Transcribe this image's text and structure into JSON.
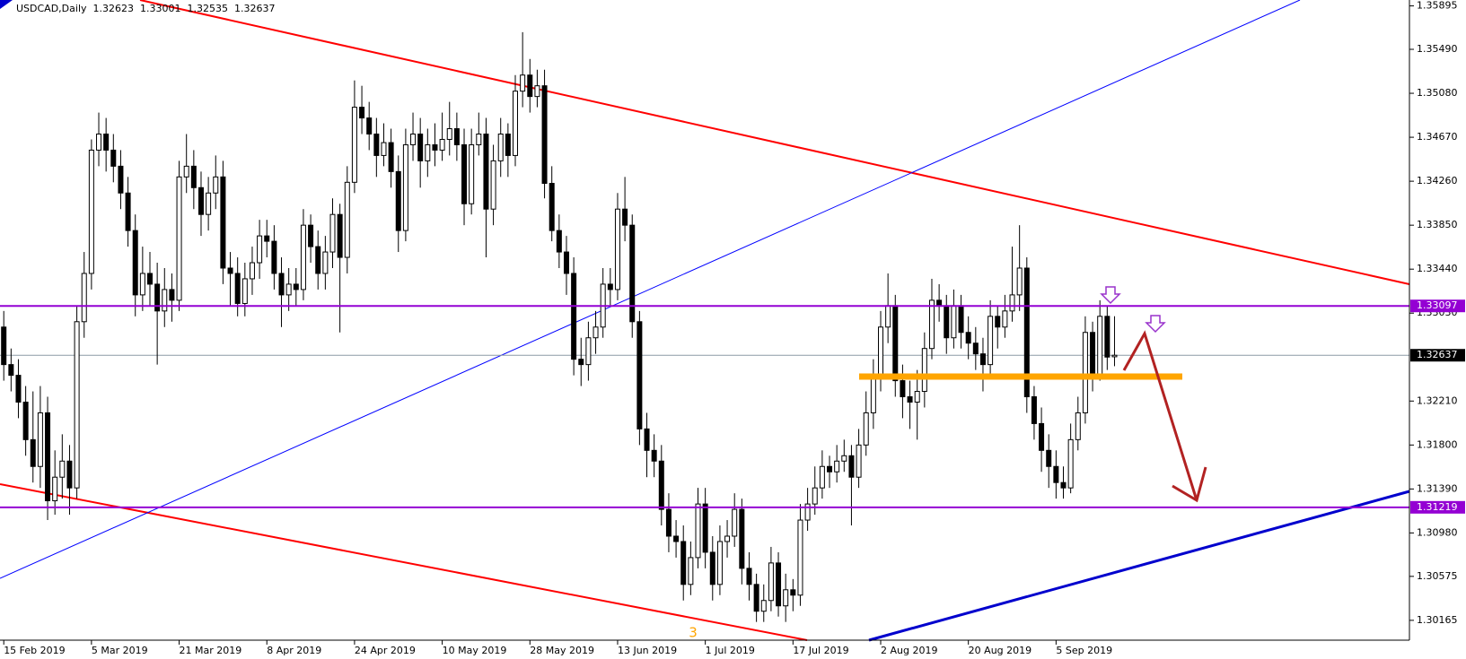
{
  "chart_data": {
    "type": "candlestick",
    "title": "USDCAD,Daily",
    "categories": [
      "15 Feb 2019",
      null,
      null,
      null,
      null,
      null,
      null,
      null,
      null,
      null,
      null,
      null,
      "5 Mar 2019",
      null,
      null,
      null,
      null,
      null,
      null,
      null,
      null,
      null,
      null,
      null,
      "21 Mar 2019",
      null,
      null,
      null,
      null,
      null,
      null,
      null,
      null,
      null,
      null,
      null,
      "8 Apr 2019",
      null,
      null,
      null,
      null,
      null,
      null,
      null,
      null,
      null,
      null,
      null,
      "24 Apr 2019",
      null,
      null,
      null,
      null,
      null,
      null,
      null,
      null,
      null,
      null,
      null,
      "10 May 2019",
      null,
      null,
      null,
      null,
      null,
      null,
      null,
      null,
      null,
      null,
      null,
      "28 May 2019",
      null,
      null,
      null,
      null,
      null,
      null,
      null,
      null,
      null,
      null,
      null,
      "13 Jun 2019",
      null,
      null,
      null,
      null,
      null,
      null,
      null,
      null,
      null,
      null,
      null,
      "1 Jul 2019",
      null,
      null,
      null,
      null,
      null,
      null,
      null,
      null,
      null,
      null,
      null,
      "17 Jul 2019",
      null,
      null,
      null,
      null,
      null,
      null,
      null,
      null,
      null,
      null,
      null,
      "2 Aug 2019",
      null,
      null,
      null,
      null,
      null,
      null,
      null,
      null,
      null,
      null,
      null,
      "20 Aug 2019",
      null,
      null,
      null,
      null,
      null,
      null,
      null,
      null,
      null,
      null,
      null,
      "5 Sep 2019",
      null,
      null,
      null,
      null,
      null,
      null,
      null,
      null
    ],
    "values": [
      [
        1.329,
        1.3305,
        1.324,
        1.3255
      ],
      [
        1.3255,
        1.327,
        1.323,
        1.3245
      ],
      [
        1.3245,
        1.326,
        1.3205,
        1.322
      ],
      [
        1.322,
        1.3235,
        1.317,
        1.3185
      ],
      [
        1.3185,
        1.323,
        1.3145,
        1.316
      ],
      [
        1.316,
        1.3235,
        1.314,
        1.321
      ],
      [
        1.321,
        1.3225,
        1.311,
        1.3128
      ],
      [
        1.3128,
        1.3175,
        1.3115,
        1.315
      ],
      [
        1.315,
        1.319,
        1.313,
        1.3165
      ],
      [
        1.3165,
        1.318,
        1.3115,
        1.314
      ],
      [
        1.314,
        1.331,
        1.313,
        1.3295
      ],
      [
        1.3295,
        1.336,
        1.328,
        1.334
      ],
      [
        1.334,
        1.3465,
        1.3325,
        1.3455
      ],
      [
        1.3455,
        1.349,
        1.344,
        1.347
      ],
      [
        1.347,
        1.3485,
        1.3435,
        1.3455
      ],
      [
        1.3455,
        1.347,
        1.3425,
        1.344
      ],
      [
        1.344,
        1.3455,
        1.34,
        1.3415
      ],
      [
        1.3415,
        1.343,
        1.3365,
        1.338
      ],
      [
        1.338,
        1.3395,
        1.33,
        1.332
      ],
      [
        1.332,
        1.3365,
        1.3305,
        1.334
      ],
      [
        1.334,
        1.336,
        1.331,
        1.333
      ],
      [
        1.333,
        1.335,
        1.3255,
        1.3305
      ],
      [
        1.3305,
        1.3345,
        1.329,
        1.3325
      ],
      [
        1.3325,
        1.334,
        1.3295,
        1.3315
      ],
      [
        1.3315,
        1.3445,
        1.3305,
        1.343
      ],
      [
        1.343,
        1.347,
        1.3415,
        1.344
      ],
      [
        1.344,
        1.3455,
        1.34,
        1.342
      ],
      [
        1.342,
        1.3435,
        1.3375,
        1.3395
      ],
      [
        1.3395,
        1.343,
        1.338,
        1.3415
      ],
      [
        1.3415,
        1.345,
        1.34,
        1.343
      ],
      [
        1.343,
        1.3445,
        1.333,
        1.3345
      ],
      [
        1.3345,
        1.336,
        1.331,
        1.334
      ],
      [
        1.334,
        1.3355,
        1.33,
        1.3312
      ],
      [
        1.3312,
        1.335,
        1.33,
        1.3335
      ],
      [
        1.3335,
        1.3365,
        1.332,
        1.335
      ],
      [
        1.335,
        1.339,
        1.3335,
        1.3375
      ],
      [
        1.3375,
        1.339,
        1.3355,
        1.337
      ],
      [
        1.337,
        1.3385,
        1.3325,
        1.334
      ],
      [
        1.334,
        1.3355,
        1.329,
        1.332
      ],
      [
        1.332,
        1.3345,
        1.3305,
        1.333
      ],
      [
        1.333,
        1.3345,
        1.331,
        1.3325
      ],
      [
        1.3325,
        1.34,
        1.3315,
        1.3385
      ],
      [
        1.3385,
        1.3395,
        1.335,
        1.3365
      ],
      [
        1.3365,
        1.338,
        1.3325,
        1.334
      ],
      [
        1.334,
        1.3375,
        1.3325,
        1.336
      ],
      [
        1.336,
        1.341,
        1.3345,
        1.3395
      ],
      [
        1.3395,
        1.3405,
        1.3285,
        1.3355
      ],
      [
        1.3355,
        1.344,
        1.334,
        1.3425
      ],
      [
        1.3425,
        1.352,
        1.3415,
        1.3495
      ],
      [
        1.3495,
        1.3515,
        1.347,
        1.3485
      ],
      [
        1.3485,
        1.35,
        1.3455,
        1.347
      ],
      [
        1.347,
        1.3485,
        1.343,
        1.345
      ],
      [
        1.345,
        1.348,
        1.344,
        1.3462
      ],
      [
        1.3462,
        1.3475,
        1.342,
        1.3435
      ],
      [
        1.3435,
        1.345,
        1.336,
        1.338
      ],
      [
        1.338,
        1.3475,
        1.337,
        1.346
      ],
      [
        1.346,
        1.349,
        1.3445,
        1.347
      ],
      [
        1.347,
        1.3485,
        1.342,
        1.3445
      ],
      [
        1.3445,
        1.3475,
        1.343,
        1.346
      ],
      [
        1.346,
        1.348,
        1.344,
        1.3455
      ],
      [
        1.3455,
        1.349,
        1.3445,
        1.3465
      ],
      [
        1.3465,
        1.35,
        1.345,
        1.3475
      ],
      [
        1.3475,
        1.349,
        1.3445,
        1.346
      ],
      [
        1.346,
        1.3475,
        1.3385,
        1.3405
      ],
      [
        1.3405,
        1.3475,
        1.3395,
        1.346
      ],
      [
        1.346,
        1.349,
        1.345,
        1.347
      ],
      [
        1.347,
        1.3485,
        1.3355,
        1.34
      ],
      [
        1.34,
        1.346,
        1.3385,
        1.3445
      ],
      [
        1.3445,
        1.3485,
        1.343,
        1.347
      ],
      [
        1.347,
        1.348,
        1.343,
        1.345
      ],
      [
        1.345,
        1.3525,
        1.344,
        1.351
      ],
      [
        1.351,
        1.3565,
        1.3495,
        1.3525
      ],
      [
        1.3525,
        1.354,
        1.349,
        1.3505
      ],
      [
        1.3505,
        1.353,
        1.3495,
        1.3515
      ],
      [
        1.3515,
        1.353,
        1.341,
        1.3424
      ],
      [
        1.3424,
        1.344,
        1.337,
        1.338
      ],
      [
        1.338,
        1.3395,
        1.3345,
        1.336
      ],
      [
        1.336,
        1.3375,
        1.332,
        1.334
      ],
      [
        1.334,
        1.3355,
        1.3245,
        1.326
      ],
      [
        1.326,
        1.328,
        1.3235,
        1.3255
      ],
      [
        1.3255,
        1.3295,
        1.324,
        1.328
      ],
      [
        1.328,
        1.3305,
        1.3265,
        1.329
      ],
      [
        1.329,
        1.3345,
        1.328,
        1.333
      ],
      [
        1.333,
        1.3345,
        1.331,
        1.3325
      ],
      [
        1.3325,
        1.3415,
        1.3315,
        1.34
      ],
      [
        1.34,
        1.343,
        1.337,
        1.3385
      ],
      [
        1.3385,
        1.3395,
        1.328,
        1.3295
      ],
      [
        1.3295,
        1.3305,
        1.318,
        1.3195
      ],
      [
        1.3195,
        1.321,
        1.315,
        1.3175
      ],
      [
        1.3175,
        1.319,
        1.315,
        1.3165
      ],
      [
        1.3165,
        1.318,
        1.3105,
        1.312
      ],
      [
        1.312,
        1.3135,
        1.308,
        1.3095
      ],
      [
        1.3095,
        1.311,
        1.3075,
        1.309
      ],
      [
        1.309,
        1.3105,
        1.3035,
        1.305
      ],
      [
        1.305,
        1.309,
        1.304,
        1.3075
      ],
      [
        1.3075,
        1.314,
        1.3065,
        1.3125
      ],
      [
        1.3125,
        1.314,
        1.3065,
        1.308
      ],
      [
        1.308,
        1.3095,
        1.3035,
        1.305
      ],
      [
        1.305,
        1.3105,
        1.304,
        1.309
      ],
      [
        1.309,
        1.311,
        1.3075,
        1.3095
      ],
      [
        1.3095,
        1.3135,
        1.3085,
        1.312
      ],
      [
        1.312,
        1.313,
        1.305,
        1.3065
      ],
      [
        1.3065,
        1.308,
        1.3035,
        1.305
      ],
      [
        1.305,
        1.306,
        1.3015,
        1.3025
      ],
      [
        1.3025,
        1.305,
        1.3015,
        1.3035
      ],
      [
        1.3035,
        1.3085,
        1.3025,
        1.307
      ],
      [
        1.307,
        1.308,
        1.302,
        1.303
      ],
      [
        1.303,
        1.306,
        1.3015,
        1.3045
      ],
      [
        1.3045,
        1.3055,
        1.3025,
        1.304
      ],
      [
        1.304,
        1.3125,
        1.303,
        1.311
      ],
      [
        1.311,
        1.314,
        1.31,
        1.3125
      ],
      [
        1.3125,
        1.316,
        1.3115,
        1.314
      ],
      [
        1.314,
        1.3175,
        1.313,
        1.316
      ],
      [
        1.316,
        1.317,
        1.314,
        1.3155
      ],
      [
        1.3155,
        1.318,
        1.3145,
        1.3165
      ],
      [
        1.3165,
        1.3185,
        1.3155,
        1.317
      ],
      [
        1.317,
        1.318,
        1.3105,
        1.315
      ],
      [
        1.315,
        1.3195,
        1.314,
        1.318
      ],
      [
        1.318,
        1.323,
        1.317,
        1.321
      ],
      [
        1.321,
        1.326,
        1.3195,
        1.3245
      ],
      [
        1.3245,
        1.3305,
        1.323,
        1.329
      ],
      [
        1.329,
        1.334,
        1.3275,
        1.331
      ],
      [
        1.331,
        1.332,
        1.3225,
        1.324
      ],
      [
        1.324,
        1.3255,
        1.3205,
        1.3225
      ],
      [
        1.3225,
        1.324,
        1.3195,
        1.322
      ],
      [
        1.322,
        1.325,
        1.3185,
        1.323
      ],
      [
        1.323,
        1.3285,
        1.3215,
        1.327
      ],
      [
        1.327,
        1.3335,
        1.326,
        1.3315
      ],
      [
        1.3315,
        1.333,
        1.3295,
        1.331
      ],
      [
        1.331,
        1.332,
        1.3265,
        1.328
      ],
      [
        1.328,
        1.3325,
        1.327,
        1.331
      ],
      [
        1.331,
        1.332,
        1.327,
        1.3285
      ],
      [
        1.3285,
        1.33,
        1.326,
        1.3275
      ],
      [
        1.3275,
        1.329,
        1.325,
        1.3265
      ],
      [
        1.3265,
        1.328,
        1.323,
        1.3255
      ],
      [
        1.3255,
        1.3315,
        1.3245,
        1.33
      ],
      [
        1.33,
        1.331,
        1.327,
        1.329
      ],
      [
        1.329,
        1.332,
        1.328,
        1.3305
      ],
      [
        1.3305,
        1.3365,
        1.3295,
        1.332
      ],
      [
        1.332,
        1.3385,
        1.3305,
        1.3345
      ],
      [
        1.3345,
        1.3355,
        1.321,
        1.3225
      ],
      [
        1.3225,
        1.3235,
        1.3185,
        1.32
      ],
      [
        1.32,
        1.3215,
        1.3155,
        1.3175
      ],
      [
        1.3175,
        1.319,
        1.314,
        1.316
      ],
      [
        1.316,
        1.3175,
        1.313,
        1.3145
      ],
      [
        1.3145,
        1.316,
        1.313,
        1.314
      ],
      [
        1.314,
        1.32,
        1.3135,
        1.3185
      ],
      [
        1.3185,
        1.3225,
        1.3175,
        1.321
      ],
      [
        1.321,
        1.33,
        1.32,
        1.3285
      ],
      [
        1.3285,
        1.3295,
        1.323,
        1.3245
      ],
      [
        1.3245,
        1.3315,
        1.324,
        1.33
      ],
      [
        1.33,
        1.331,
        1.325,
        1.3262
      ],
      [
        1.32623,
        1.33001,
        1.32535,
        1.32637
      ]
    ],
    "up_color": "#ffffff",
    "down_color": "#000000",
    "ylim": [
      1.2998,
      1.3595
    ],
    "yticks": [
      1.35895,
      {
        "value": 1.3549,
        "label": "1.35490"
      },
      {
        "value": 1.3508,
        "label": "1.35080"
      },
      {
        "value": 1.3467,
        "label": "1.34670"
      },
      {
        "value": 1.3426,
        "label": "1.34260"
      },
      {
        "value": 1.3385,
        "label": "1.33850"
      },
      {
        "value": 1.3344,
        "label": "1.33440"
      },
      {
        "value": 1.3303,
        "label": "1.33030"
      },
      {
        "value": 1.3221,
        "label": "1.32210"
      },
      {
        "value": 1.318,
        "label": "1.31800"
      },
      {
        "value": 1.3139,
        "label": "1.31390"
      },
      {
        "value": 1.3098,
        "label": "1.30980"
      },
      1.30575,
      1.30165
    ],
    "levels": [
      {
        "value": 1.33097,
        "color": "#9400d3"
      },
      {
        "value": 1.31219,
        "color": "#9400d3"
      }
    ],
    "current_price_color": "#000000",
    "annotations": [
      "3"
    ]
  }
}
